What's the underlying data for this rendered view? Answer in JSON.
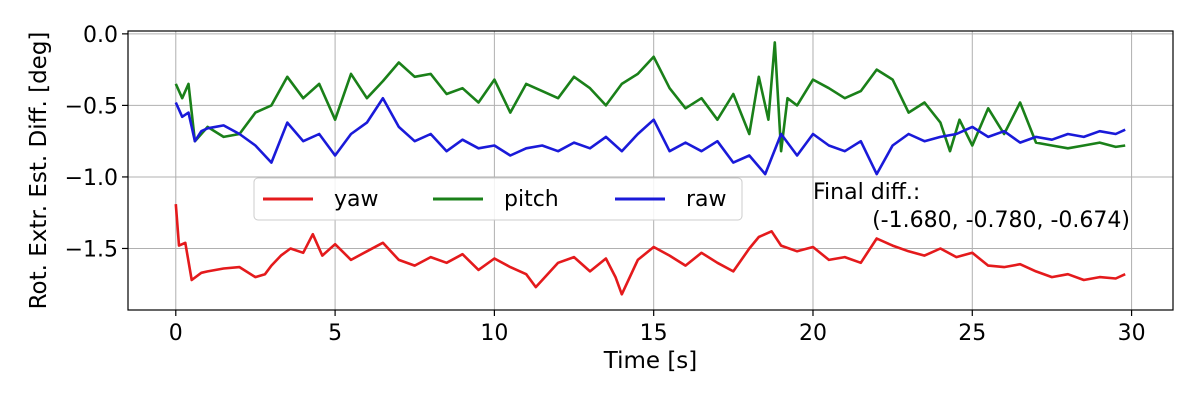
{
  "chart_data": {
    "type": "line",
    "xlabel": "Time [s]",
    "ylabel": "Rot. Extr. Est. Diff. [deg]",
    "xlim": [
      -1.5,
      31.3
    ],
    "ylim": [
      -1.93,
      0.02
    ],
    "xticks": [
      0,
      5,
      10,
      15,
      20,
      25,
      30
    ],
    "xtick_labels": [
      "0",
      "5",
      "10",
      "15",
      "20",
      "25",
      "30"
    ],
    "yticks": [
      0.0,
      -0.5,
      -1.0,
      -1.5
    ],
    "ytick_labels": [
      "0.0",
      "−0.5",
      "−1.0",
      "−1.5"
    ],
    "grid": true,
    "legend_placement": "center-left, horizontal",
    "annotation": [
      "Final diff.:",
      "(-1.680, -0.780, -0.674)"
    ],
    "series": [
      {
        "name": "yaw",
        "color": "#e41a1c",
        "x": [
          0,
          0.1,
          0.3,
          0.5,
          0.8,
          1.0,
          1.5,
          2.0,
          2.5,
          2.8,
          3.0,
          3.3,
          3.6,
          4.0,
          4.3,
          4.6,
          5.0,
          5.5,
          6.0,
          6.5,
          7.0,
          7.5,
          8.0,
          8.5,
          9.0,
          9.5,
          10.0,
          10.5,
          11.0,
          11.3,
          12.0,
          12.5,
          13.0,
          13.5,
          13.8,
          14.0,
          14.5,
          15.0,
          15.5,
          16.0,
          16.5,
          17.0,
          17.5,
          18.0,
          18.3,
          18.7,
          19.0,
          19.5,
          20.0,
          20.5,
          21.0,
          21.5,
          22.0,
          22.5,
          23.0,
          23.5,
          24.0,
          24.5,
          25.0,
          25.5,
          26.0,
          26.5,
          27.0,
          27.5,
          28.0,
          28.5,
          29.0,
          29.5,
          29.8
        ],
        "values": [
          -1.19,
          -1.48,
          -1.46,
          -1.72,
          -1.67,
          -1.66,
          -1.64,
          -1.63,
          -1.7,
          -1.68,
          -1.62,
          -1.55,
          -1.5,
          -1.53,
          -1.4,
          -1.55,
          -1.47,
          -1.58,
          -1.52,
          -1.46,
          -1.58,
          -1.62,
          -1.56,
          -1.6,
          -1.54,
          -1.65,
          -1.57,
          -1.63,
          -1.68,
          -1.77,
          -1.6,
          -1.56,
          -1.66,
          -1.57,
          -1.7,
          -1.82,
          -1.58,
          -1.49,
          -1.55,
          -1.62,
          -1.53,
          -1.6,
          -1.66,
          -1.5,
          -1.42,
          -1.38,
          -1.48,
          -1.52,
          -1.49,
          -1.58,
          -1.56,
          -1.6,
          -1.43,
          -1.48,
          -1.52,
          -1.55,
          -1.5,
          -1.56,
          -1.53,
          -1.62,
          -1.63,
          -1.61,
          -1.66,
          -1.7,
          -1.68,
          -1.72,
          -1.7,
          -1.71,
          -1.68
        ]
      },
      {
        "name": "pitch",
        "color": "#1a8019",
        "x": [
          0,
          0.2,
          0.4,
          0.6,
          0.8,
          1.0,
          1.5,
          2.0,
          2.5,
          3.0,
          3.5,
          4.0,
          4.5,
          5.0,
          5.5,
          6.0,
          6.5,
          7.0,
          7.5,
          8.0,
          8.5,
          9.0,
          9.5,
          10.0,
          10.5,
          11.0,
          11.5,
          12.0,
          12.5,
          13.0,
          13.5,
          14.0,
          14.5,
          15.0,
          15.5,
          16.0,
          16.5,
          17.0,
          17.5,
          18.0,
          18.3,
          18.6,
          18.8,
          19.0,
          19.2,
          19.5,
          20.0,
          20.5,
          21.0,
          21.5,
          22.0,
          22.5,
          23.0,
          23.5,
          24.0,
          24.3,
          24.6,
          25.0,
          25.5,
          26.0,
          26.5,
          27.0,
          27.5,
          28.0,
          28.5,
          29.0,
          29.5,
          29.8
        ],
        "values": [
          -0.35,
          -0.45,
          -0.35,
          -0.75,
          -0.7,
          -0.65,
          -0.72,
          -0.7,
          -0.55,
          -0.5,
          -0.3,
          -0.45,
          -0.35,
          -0.6,
          -0.28,
          -0.45,
          -0.33,
          -0.2,
          -0.3,
          -0.28,
          -0.42,
          -0.38,
          -0.48,
          -0.32,
          -0.55,
          -0.35,
          -0.4,
          -0.45,
          -0.3,
          -0.38,
          -0.5,
          -0.35,
          -0.28,
          -0.16,
          -0.38,
          -0.52,
          -0.45,
          -0.6,
          -0.42,
          -0.7,
          -0.3,
          -0.6,
          -0.06,
          -0.82,
          -0.45,
          -0.5,
          -0.32,
          -0.38,
          -0.45,
          -0.4,
          -0.25,
          -0.32,
          -0.55,
          -0.48,
          -0.62,
          -0.82,
          -0.6,
          -0.78,
          -0.52,
          -0.7,
          -0.48,
          -0.76,
          -0.78,
          -0.8,
          -0.78,
          -0.76,
          -0.79,
          -0.78
        ]
      },
      {
        "name": "raw",
        "color": "#1a1ad9",
        "x": [
          0,
          0.2,
          0.4,
          0.6,
          0.8,
          1.0,
          1.5,
          2.0,
          2.5,
          3.0,
          3.5,
          4.0,
          4.5,
          5.0,
          5.5,
          6.0,
          6.5,
          7.0,
          7.5,
          8.0,
          8.5,
          9.0,
          9.5,
          10.0,
          10.5,
          11.0,
          11.5,
          12.0,
          12.5,
          13.0,
          13.5,
          14.0,
          14.5,
          15.0,
          15.5,
          16.0,
          16.5,
          17.0,
          17.5,
          18.0,
          18.5,
          19.0,
          19.5,
          20.0,
          20.5,
          21.0,
          21.5,
          22.0,
          22.5,
          23.0,
          23.5,
          24.0,
          24.5,
          25.0,
          25.5,
          26.0,
          26.5,
          27.0,
          27.5,
          28.0,
          28.5,
          29.0,
          29.5,
          29.8
        ],
        "values": [
          -0.48,
          -0.58,
          -0.55,
          -0.75,
          -0.68,
          -0.66,
          -0.64,
          -0.7,
          -0.78,
          -0.9,
          -0.62,
          -0.75,
          -0.7,
          -0.85,
          -0.7,
          -0.62,
          -0.45,
          -0.65,
          -0.75,
          -0.7,
          -0.82,
          -0.74,
          -0.8,
          -0.78,
          -0.85,
          -0.8,
          -0.78,
          -0.82,
          -0.76,
          -0.8,
          -0.72,
          -0.82,
          -0.7,
          -0.6,
          -0.82,
          -0.76,
          -0.82,
          -0.75,
          -0.9,
          -0.85,
          -0.98,
          -0.7,
          -0.85,
          -0.7,
          -0.78,
          -0.82,
          -0.75,
          -0.98,
          -0.78,
          -0.7,
          -0.75,
          -0.72,
          -0.7,
          -0.65,
          -0.72,
          -0.68,
          -0.76,
          -0.72,
          -0.74,
          -0.7,
          -0.72,
          -0.68,
          -0.7,
          -0.67
        ]
      }
    ]
  }
}
